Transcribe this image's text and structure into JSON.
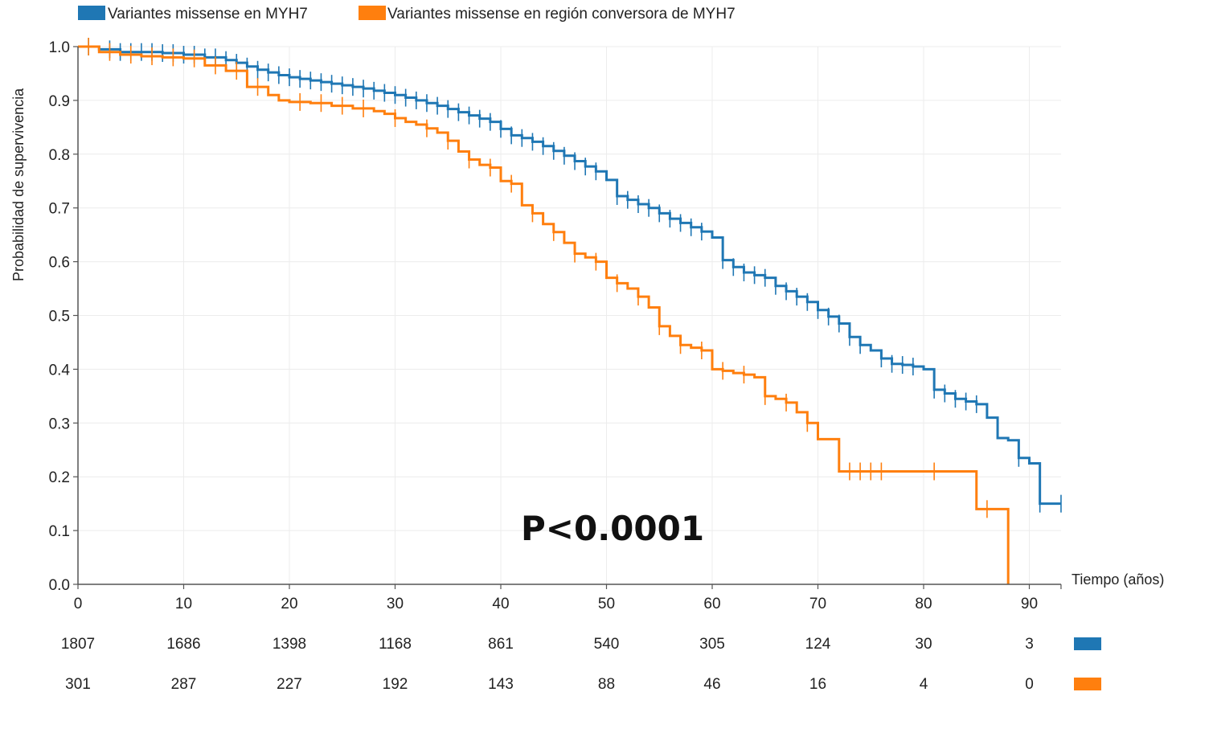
{
  "chart_data": {
    "type": "line",
    "subtype": "kaplan-meier survival curves",
    "xlabel": "Tiempo (años)",
    "ylabel": "Probabilidad de supervivencia",
    "xlim": [
      0,
      93
    ],
    "ylim": [
      0,
      1.0
    ],
    "x_ticks": [
      0,
      10,
      20,
      30,
      40,
      50,
      60,
      70,
      80,
      90
    ],
    "y_ticks": [
      0.0,
      0.1,
      0.2,
      0.3,
      0.4,
      0.5,
      0.6,
      0.7,
      0.8,
      0.9,
      1.0
    ],
    "y_tick_labels": [
      "0.0",
      "0.1",
      "0.2",
      "0.3",
      "0.4",
      "0.5",
      "0.6",
      "0.7",
      "0.8",
      "0.9",
      "1.0"
    ],
    "grid": true,
    "legend_position": "top-left",
    "annotation": "P<0.0001",
    "series": [
      {
        "name": "Variantes missense en MYH7",
        "color": "#1f77b4",
        "x": [
          0,
          2,
          4,
          6,
          8,
          10,
          12,
          14,
          15,
          16,
          17,
          18,
          19,
          20,
          21,
          22,
          23,
          24,
          25,
          26,
          27,
          28,
          29,
          30,
          31,
          32,
          33,
          34,
          35,
          36,
          37,
          38,
          39,
          40,
          41,
          42,
          43,
          44,
          45,
          46,
          47,
          48,
          49,
          50,
          51,
          52,
          53,
          54,
          55,
          56,
          57,
          58,
          59,
          60,
          61,
          62,
          63,
          64,
          65,
          66,
          67,
          68,
          69,
          70,
          71,
          72,
          73,
          74,
          75,
          76,
          77,
          78,
          79,
          80,
          81,
          82,
          83,
          84,
          85,
          86,
          87,
          88,
          89,
          90,
          91,
          92,
          93
        ],
        "y": [
          1.0,
          0.995,
          0.99,
          0.99,
          0.988,
          0.985,
          0.98,
          0.975,
          0.97,
          0.963,
          0.957,
          0.952,
          0.947,
          0.943,
          0.94,
          0.937,
          0.934,
          0.931,
          0.928,
          0.925,
          0.922,
          0.918,
          0.914,
          0.91,
          0.905,
          0.9,
          0.895,
          0.89,
          0.884,
          0.878,
          0.872,
          0.866,
          0.86,
          0.847,
          0.835,
          0.83,
          0.823,
          0.815,
          0.806,
          0.797,
          0.787,
          0.777,
          0.768,
          0.752,
          0.722,
          0.715,
          0.707,
          0.7,
          0.69,
          0.68,
          0.672,
          0.664,
          0.656,
          0.645,
          0.603,
          0.59,
          0.58,
          0.575,
          0.57,
          0.555,
          0.545,
          0.535,
          0.525,
          0.51,
          0.498,
          0.485,
          0.46,
          0.445,
          0.435,
          0.42,
          0.41,
          0.408,
          0.405,
          0.4,
          0.362,
          0.355,
          0.345,
          0.34,
          0.335,
          0.31,
          0.272,
          0.268,
          0.235,
          0.225,
          0.15,
          0.15,
          0.15
        ],
        "censor_x": [
          1,
          3,
          4,
          5,
          6,
          7,
          8,
          9,
          10,
          11,
          12,
          13,
          14,
          15,
          16,
          17,
          18,
          19,
          20,
          21,
          22,
          23,
          24,
          25,
          26,
          27,
          28,
          29,
          30,
          31,
          32,
          33,
          34,
          35,
          36,
          37,
          38,
          39,
          40,
          41,
          42,
          43,
          44,
          45,
          46,
          47,
          48,
          49,
          51,
          52,
          53,
          54,
          55,
          56,
          57,
          58,
          59,
          61,
          62,
          63,
          64,
          65,
          66,
          67,
          68,
          69,
          70,
          71,
          72,
          73,
          74,
          76,
          77,
          78,
          79,
          81,
          82,
          83,
          84,
          85,
          89,
          91,
          93
        ]
      },
      {
        "name": "Variantes missense en región conversora de MYH7",
        "color": "#ff7f0e",
        "x": [
          0,
          2,
          4,
          6,
          8,
          10,
          12,
          14,
          16,
          18,
          19,
          20,
          22,
          24,
          26,
          28,
          29,
          30,
          31,
          32,
          33,
          34,
          35,
          36,
          37,
          38,
          39,
          40,
          41,
          42,
          43,
          44,
          45,
          46,
          47,
          48,
          49,
          50,
          51,
          52,
          53,
          54,
          55,
          56,
          57,
          58,
          59,
          60,
          61,
          62,
          63,
          64,
          65,
          66,
          67,
          68,
          69,
          70,
          71,
          72,
          73,
          74,
          75,
          76,
          77,
          78,
          79,
          80,
          81,
          82,
          83,
          84,
          85,
          86,
          87,
          88
        ],
        "y": [
          1.0,
          0.99,
          0.985,
          0.982,
          0.98,
          0.978,
          0.965,
          0.955,
          0.925,
          0.91,
          0.9,
          0.897,
          0.895,
          0.89,
          0.885,
          0.88,
          0.875,
          0.867,
          0.86,
          0.855,
          0.848,
          0.84,
          0.825,
          0.805,
          0.79,
          0.78,
          0.775,
          0.75,
          0.745,
          0.705,
          0.69,
          0.67,
          0.655,
          0.635,
          0.615,
          0.608,
          0.6,
          0.57,
          0.56,
          0.55,
          0.535,
          0.515,
          0.48,
          0.462,
          0.445,
          0.44,
          0.435,
          0.4,
          0.397,
          0.393,
          0.39,
          0.385,
          0.35,
          0.345,
          0.338,
          0.32,
          0.3,
          0.27,
          0.27,
          0.21,
          0.21,
          0.21,
          0.21,
          0.21,
          0.21,
          0.21,
          0.21,
          0.21,
          0.21,
          0.21,
          0.21,
          0.21,
          0.14,
          0.14,
          0.14,
          0.0
        ],
        "censor_x": [
          1,
          3,
          5,
          7,
          9,
          11,
          13,
          15,
          17,
          21,
          23,
          25,
          27,
          30,
          33,
          35,
          37,
          39,
          41,
          43,
          45,
          47,
          49,
          51,
          53,
          55,
          57,
          59,
          61,
          63,
          65,
          67,
          69,
          73,
          74,
          75,
          76,
          81,
          86
        ]
      }
    ],
    "risk_table": {
      "times": [
        0,
        10,
        20,
        30,
        40,
        50,
        60,
        70,
        80,
        90
      ],
      "rows": [
        {
          "name": "Variantes missense en MYH7",
          "color": "#1f77b4",
          "values": [
            "1807",
            "1686",
            "1398",
            "1168",
            "861",
            "540",
            "305",
            "124",
            "30",
            "3"
          ]
        },
        {
          "name": "Variantes missense en región conversora de MYH7",
          "color": "#ff7f0e",
          "values": [
            "301",
            "287",
            "227",
            "192",
            "143",
            "88",
            "46",
            "16",
            "4",
            "0"
          ]
        }
      ]
    }
  }
}
